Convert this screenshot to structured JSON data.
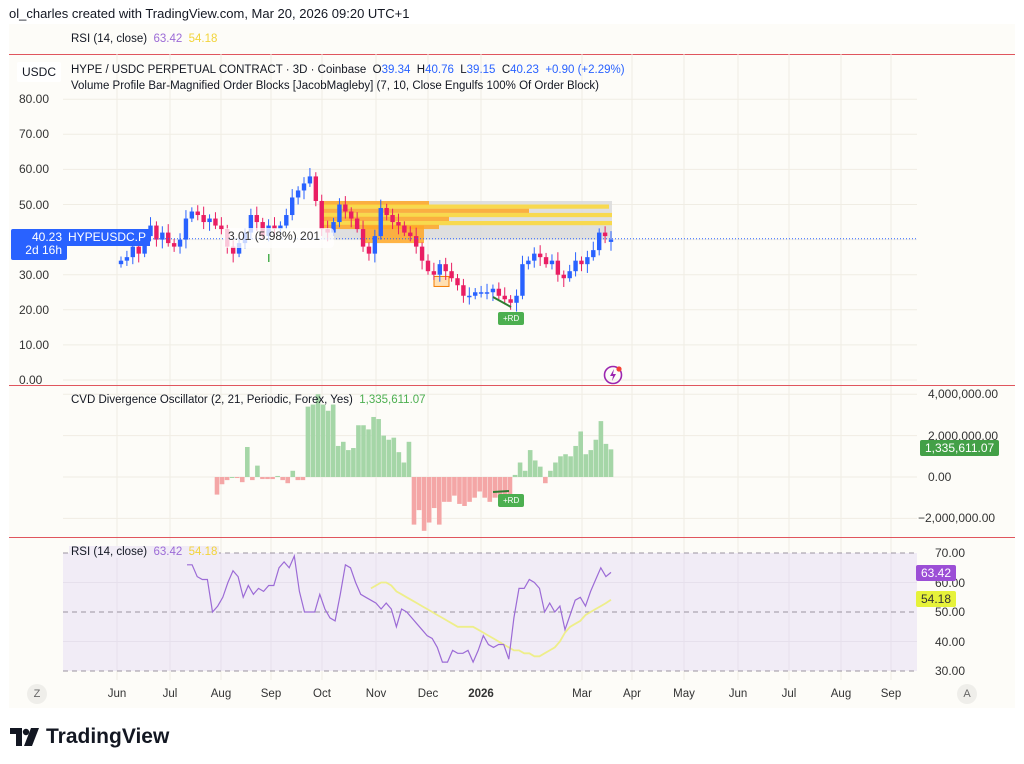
{
  "header": {
    "attribution": "ol_charles created with TradingView.com, Mar 20, 2026 09:20 UTC+1"
  },
  "top_strip": {
    "label": "RSI (14, close)",
    "value1": "63.42",
    "value2": "54.18"
  },
  "main_pane": {
    "currency": "USDC",
    "title": "HYPE / USDC PERPETUAL CONTRACT · 3D · Coinbase",
    "ohlc": {
      "o_label": "O",
      "o": "39.34",
      "h_label": "H",
      "h": "40.76",
      "l_label": "L",
      "l": "39.15",
      "c_label": "C",
      "c": "40.23",
      "change": "+0.90 (+2.29%)"
    },
    "indicator": "Volume Profile Bar-Magnified Order Blocks [JacobMagleby] (7, 10, Close Engulfs 100% Of Order Block)",
    "price_tag": {
      "price": "40.23",
      "countdown": "2d 16h"
    },
    "symbol_tag": "HYPEUSDC.P",
    "measure_label": "3.01 (5.98%) 201",
    "rd_label": "+RD",
    "y_ticks": [
      "80.00",
      "70.00",
      "60.00",
      "50.00",
      "30.00",
      "20.00",
      "10.00",
      "0.00"
    ]
  },
  "cvd_pane": {
    "title": "CVD Divergence Oscillator (2, 21, Periodic, Forex, Yes)",
    "value": "1,335,611.07",
    "y_ticks": [
      "4,000,000.00",
      "2,000,000.00",
      "0.00",
      "−2,000,000.00"
    ],
    "rd_label": "+RD"
  },
  "rsi_pane": {
    "title": "RSI (14, close)",
    "rsi_value": "63.42",
    "ma_value": "54.18",
    "y_ticks": [
      "70.00",
      "60.00",
      "50.00",
      "40.00",
      "30.00"
    ]
  },
  "time_axis": {
    "labels": [
      "Jun",
      "Jul",
      "Aug",
      "Sep",
      "Oct",
      "Nov",
      "Dec",
      "2026",
      "Mar",
      "Apr",
      "May",
      "Jun",
      "Jul",
      "Aug",
      "Sep"
    ],
    "left_button": "Z",
    "right_button": "A"
  },
  "footer": {
    "brand": "TradingView"
  },
  "colors": {
    "up": "#2962ff",
    "down": "#e91e63",
    "cvd_pos": "#a5d6a7",
    "cvd_neg": "#f4a6a6",
    "rsi": "#9c6bd6",
    "rsi_ma": "#eeee8a",
    "separator": "#e0555e"
  },
  "chart_data": [
    {
      "type": "candlestick",
      "title": "HYPE / USDC PERPETUAL CONTRACT · 3D · Coinbase",
      "ylabel": "USDC",
      "ylim": [
        0,
        80
      ],
      "x_ticks": [
        "Jun",
        "Jul",
        "Aug",
        "Sep",
        "Oct",
        "Nov",
        "Dec",
        "2026",
        "Mar",
        "Apr",
        "May",
        "Jun",
        "Jul",
        "Aug",
        "Sep"
      ],
      "ohlc_last": {
        "open": 39.34,
        "high": 40.76,
        "low": 39.15,
        "close": 40.23,
        "change": 0.9,
        "change_pct": 2.29
      },
      "closes_approx": [
        34,
        35,
        38,
        36,
        41,
        44,
        40,
        42,
        39,
        38,
        40,
        46,
        48,
        47,
        45,
        46,
        44,
        43,
        38,
        36,
        39,
        42,
        47,
        45,
        41,
        44,
        43,
        44,
        47,
        52,
        54,
        56,
        58,
        51,
        43,
        42,
        45,
        50,
        48,
        46,
        43,
        38,
        36,
        41,
        49,
        47,
        45,
        44,
        42,
        41,
        38,
        34,
        31,
        30,
        33,
        31,
        29,
        27,
        24,
        24,
        25,
        25,
        25,
        26,
        24,
        23,
        22,
        24,
        33,
        34,
        36,
        35,
        33,
        34,
        30,
        29,
        31,
        34,
        33,
        35,
        37,
        42,
        41,
        40
      ]
    },
    {
      "type": "bar",
      "title": "CVD Divergence Oscillator (2, 21, Periodic, Forex, Yes)",
      "ylim": [
        -2500000,
        4200000
      ],
      "last_value": 1335611.07,
      "values": [
        -850000,
        -350000,
        -150000,
        0,
        -50000,
        -250000,
        1450000,
        -150000,
        550000,
        -100000,
        -100000,
        -100000,
        50000,
        -150000,
        -300000,
        300000,
        -150000,
        -150000,
        3400000,
        3500000,
        4000000,
        3500000,
        3200000,
        3500000,
        1500000,
        1700000,
        1300000,
        1400000,
        2500000,
        2500000,
        2300000,
        2900000,
        2800000,
        2000000,
        1800000,
        1900000,
        1200000,
        700000,
        1700000,
        -2300000,
        -1600000,
        -2600000,
        -2200000,
        -1500000,
        -2300000,
        -1200000,
        -1200000,
        -900000,
        -1300000,
        -1400000,
        -1200000,
        -1000000,
        -700000,
        -1000000,
        -1200000,
        -1000000,
        -1000000,
        -900000,
        -1000000,
        100000,
        700000,
        300000,
        1300000,
        800000,
        500000,
        -300000,
        300000,
        700000,
        1000000,
        1100000,
        1000000,
        1500000,
        2200000,
        1100000,
        1300000,
        1800000,
        2700000,
        1600000,
        1335611
      ]
    },
    {
      "type": "line",
      "title": "RSI (14, close)",
      "ylim": [
        30,
        70
      ],
      "reference_lines": [
        70,
        50,
        30
      ],
      "series": [
        {
          "name": "RSI",
          "last": 63.42,
          "values": [
            66,
            66,
            62,
            61,
            61,
            50,
            52,
            55,
            60,
            64,
            62,
            55,
            59,
            56,
            58,
            57,
            59,
            59,
            65,
            67,
            65,
            69,
            57,
            50,
            50,
            50,
            56,
            51,
            48,
            47,
            56,
            66,
            65,
            60,
            56,
            55,
            54,
            53,
            51,
            53,
            51,
            45,
            51,
            50,
            48,
            46,
            44,
            42,
            41,
            38,
            33,
            33,
            37,
            36,
            36,
            37,
            33,
            37,
            42,
            39,
            38,
            39,
            39,
            34,
            48,
            58,
            58,
            61,
            60,
            58,
            50,
            53,
            50,
            52,
            44,
            49,
            54,
            55,
            52,
            57,
            61,
            65,
            62,
            63.42
          ]
        },
        {
          "name": "RSI MA",
          "last": 54.18,
          "values": [
            null,
            null,
            null,
            null,
            null,
            null,
            null,
            null,
            null,
            null,
            null,
            null,
            null,
            null,
            null,
            null,
            null,
            58,
            59,
            60,
            60,
            59,
            57,
            56,
            55,
            54,
            53,
            52,
            51,
            50,
            49,
            48,
            47,
            46,
            45,
            45,
            45,
            45,
            44,
            43,
            42,
            41,
            40,
            39,
            38,
            37,
            37,
            36,
            36,
            35,
            35,
            36,
            37,
            38,
            40,
            43,
            45,
            46,
            47,
            49,
            50,
            51,
            52,
            53,
            54.18
          ]
        }
      ]
    }
  ]
}
